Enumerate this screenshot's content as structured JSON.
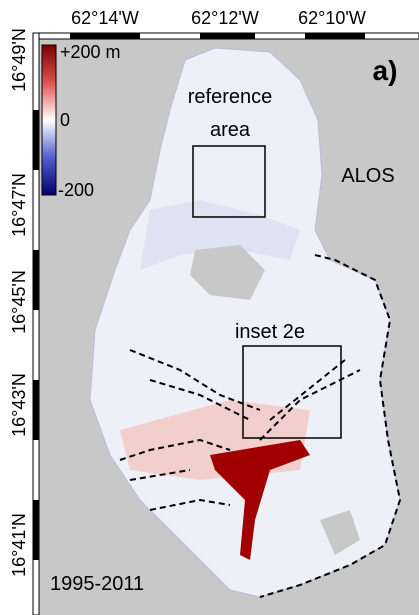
{
  "axes": {
    "top_labels": [
      "62°14'W",
      "62°12'W",
      "62°10'W"
    ],
    "left_labels": [
      "16°49'N",
      "16°47'N",
      "16°45'N",
      "16°43'N",
      "16°41'N"
    ]
  },
  "colorbar": {
    "labels": [
      "+200 m",
      "0",
      "-200"
    ]
  },
  "panel_label": "a)",
  "annotations": {
    "reference_area": [
      "reference",
      "area"
    ],
    "sensor": "ALOS",
    "inset": "inset 2e",
    "period": "1995-2011"
  }
}
